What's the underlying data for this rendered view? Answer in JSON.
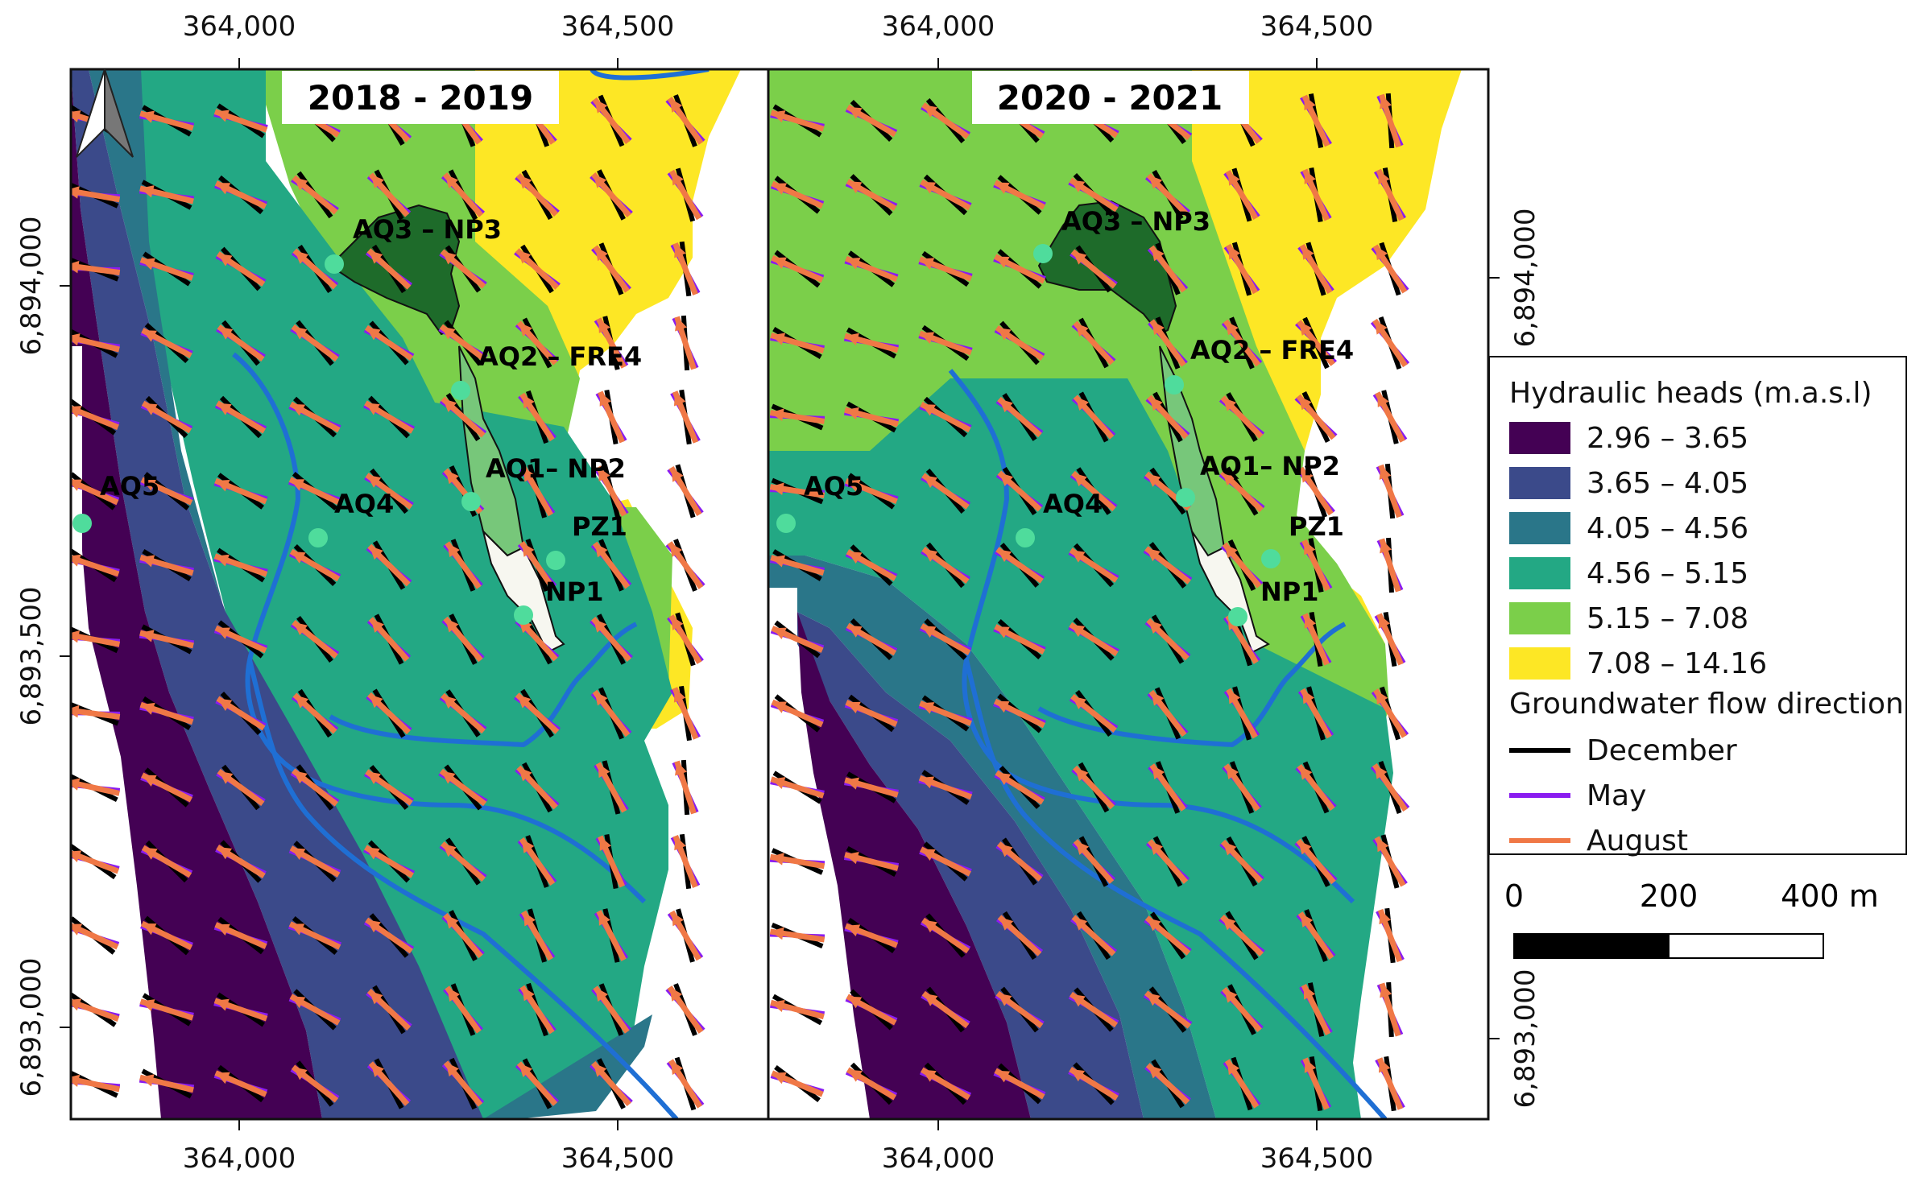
{
  "maps": [
    {
      "id": "left",
      "title": "2018 - 2019",
      "wells": [
        {
          "label": "AQ3 – NP3"
        },
        {
          "label": "AQ2 – FRE4"
        },
        {
          "label": "AQ1– NP2"
        },
        {
          "label": "AQ4"
        },
        {
          "label": "AQ5"
        },
        {
          "label": "PZ1"
        },
        {
          "label": "NP1"
        }
      ]
    },
    {
      "id": "right",
      "title": "2020 - 2021",
      "wells": [
        {
          "label": "AQ3 – NP3"
        },
        {
          "label": "AQ2 – FRE4"
        },
        {
          "label": "AQ1– NP2"
        },
        {
          "label": "AQ4"
        },
        {
          "label": "AQ5"
        },
        {
          "label": "PZ1"
        },
        {
          "label": "NP1"
        }
      ]
    }
  ],
  "axes": {
    "x_ticks": [
      "364,000",
      "364,500"
    ],
    "y_ticks": [
      "6,894,000",
      "6,893,500",
      "6,893,000"
    ]
  },
  "legend": {
    "title": "Hydraulic heads (m.a.s.l)",
    "classes": [
      {
        "label": "2.96 – 3.65",
        "color": "#440154"
      },
      {
        "label": "3.65 – 4.05",
        "color": "#3b4a8a"
      },
      {
        "label": "4.05 – 4.56",
        "color": "#2a7689"
      },
      {
        "label": "4.56 – 5.15",
        "color": "#23a884"
      },
      {
        "label": "5.15 – 7.08",
        "color": "#7bcf4a"
      },
      {
        "label": "7.08 – 14.16",
        "color": "#fde725"
      }
    ],
    "flow_title": "Groundwater flow direction",
    "flow_months": [
      {
        "label": "December",
        "color": "#000000"
      },
      {
        "label": "May",
        "color": "#8a1cf0"
      },
      {
        "label": "August",
        "color": "#f07846"
      }
    ]
  },
  "scale_bar": {
    "labels": [
      "0",
      "200",
      "400 m"
    ]
  },
  "colors": {
    "river": "#1f6fd4",
    "lake_dark": "#1e6b2a",
    "lake_light": "#77c77a",
    "well": "#4fdc9c"
  }
}
